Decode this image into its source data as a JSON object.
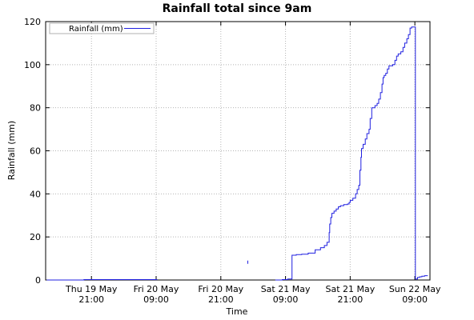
{
  "chart_data": {
    "type": "line",
    "title": "Rainfall total since 9am",
    "xlabel": "Time",
    "ylabel": "Rainfall (mm)",
    "ylim": [
      0,
      120
    ],
    "yticks": [
      0,
      20,
      40,
      60,
      80,
      100,
      120
    ],
    "xlim_hours": [
      -20.5,
      50.8
    ],
    "xticks": [
      {
        "h": -12,
        "line1": "Thu 19 May",
        "line2": "21:00"
      },
      {
        "h": 0,
        "line1": "Fri 20 May",
        "line2": "09:00"
      },
      {
        "h": 12,
        "line1": "Fri 20 May",
        "line2": "21:00"
      },
      {
        "h": 24,
        "line1": "Sat 21 May",
        "line2": "09:00"
      },
      {
        "h": 36,
        "line1": "Sat 21 May",
        "line2": "21:00"
      },
      {
        "h": 48,
        "line1": "Sun 22 May",
        "line2": "09:00"
      }
    ],
    "grid": true,
    "legend_position": "top-left",
    "series": [
      {
        "name": "Rainfall (mm)",
        "color": "#2020e0",
        "segments": [
          [
            [
              -20.3,
              0
            ],
            [
              -14.6,
              0
            ],
            [
              -13.4,
              0.2
            ],
            [
              -9.6,
              0.2
            ],
            [
              -5.8,
              0.2
            ],
            [
              -3.9,
              0.2
            ],
            [
              -1.9,
              0.2
            ],
            [
              0.2,
              0.2
            ]
          ],
          [
            [
              17.0,
              7.5
            ],
            [
              17.0,
              9.0
            ]
          ],
          [
            [
              22.1,
              0
            ],
            [
              22.3,
              0
            ],
            [
              23.4,
              0.2
            ],
            [
              24.4,
              0.5
            ],
            [
              25.2,
              1.0
            ],
            [
              25.2,
              11.5
            ],
            [
              26.0,
              11.8
            ],
            [
              27.0,
              12.0
            ],
            [
              28.2,
              12.5
            ],
            [
              29.0,
              12.5
            ],
            [
              29.5,
              14.0
            ],
            [
              30.5,
              15.0
            ],
            [
              31.2,
              16.0
            ],
            [
              31.7,
              17.5
            ],
            [
              32.1,
              22.0
            ],
            [
              32.2,
              26.0
            ],
            [
              32.4,
              29.0
            ],
            [
              32.6,
              31.0
            ],
            [
              33.0,
              32.0
            ],
            [
              33.4,
              33.0
            ],
            [
              33.8,
              34.0
            ],
            [
              34.2,
              34.5
            ],
            [
              34.8,
              35.0
            ],
            [
              35.5,
              35.3
            ],
            [
              35.8,
              36.0
            ],
            [
              36.0,
              37.0
            ],
            [
              36.5,
              38.0
            ],
            [
              37.0,
              40.0
            ],
            [
              37.3,
              42.0
            ],
            [
              37.6,
              44.0
            ],
            [
              37.8,
              51.0
            ],
            [
              38.0,
              57.0
            ],
            [
              38.1,
              61.0
            ],
            [
              38.4,
              63.0
            ],
            [
              38.8,
              65.5
            ],
            [
              39.1,
              68.0
            ],
            [
              39.5,
              70.0
            ],
            [
              39.7,
              75.0
            ],
            [
              40.0,
              80.0
            ],
            [
              40.6,
              81.0
            ],
            [
              41.0,
              82.0
            ],
            [
              41.3,
              84.0
            ],
            [
              41.6,
              87.0
            ],
            [
              41.9,
              91.0
            ],
            [
              42.1,
              94.0
            ],
            [
              42.3,
              95.0
            ],
            [
              42.6,
              96.0
            ],
            [
              42.9,
              98.0
            ],
            [
              43.2,
              99.5
            ],
            [
              43.9,
              100.0
            ],
            [
              44.3,
              102.0
            ],
            [
              44.6,
              104.0
            ],
            [
              44.9,
              105.0
            ],
            [
              45.4,
              106.0
            ],
            [
              45.8,
              108.0
            ],
            [
              46.1,
              110.0
            ],
            [
              46.5,
              112.0
            ],
            [
              46.8,
              114.0
            ],
            [
              47.1,
              117.0
            ],
            [
              47.4,
              117.5
            ],
            [
              48.0,
              117.5
            ],
            [
              48.1,
              0.5
            ],
            [
              48.5,
              1.2
            ],
            [
              48.9,
              1.5
            ],
            [
              49.3,
              1.8
            ],
            [
              49.8,
              2.0
            ],
            [
              50.4,
              2.0
            ]
          ]
        ]
      }
    ]
  }
}
